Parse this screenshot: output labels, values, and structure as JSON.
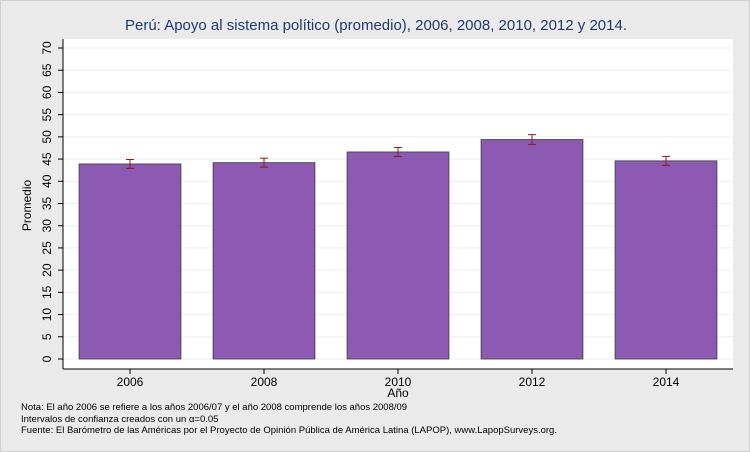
{
  "chart_data": {
    "type": "bar",
    "title": "Perú: Apoyo al sistema político (promedio), 2006, 2008, 2010, 2012 y 2014.",
    "xlabel": "Año",
    "ylabel": "Promedio",
    "categories": [
      "2006",
      "2008",
      "2010",
      "2012",
      "2014"
    ],
    "values": [
      43.9,
      44.2,
      46.6,
      49.4,
      44.6
    ],
    "ci_lower": [
      42.9,
      43.2,
      45.6,
      48.3,
      43.6
    ],
    "ci_upper": [
      44.9,
      45.2,
      47.6,
      50.5,
      45.6
    ],
    "ylim": [
      0,
      70
    ],
    "yticks": [
      0,
      5,
      10,
      15,
      20,
      25,
      30,
      35,
      40,
      45,
      50,
      55,
      60,
      65,
      70
    ],
    "grid": true,
    "bar_color": "#8c59b3",
    "errorbar_color": "#8b1a1a"
  },
  "notes": {
    "line1": "Nota: El año 2006 se refiere a los años 2006/07 y el año 2008 comprende los años 2008/09",
    "line2": "Intervalos de confianza creados con un α=0.05",
    "line3": "Fuente: El Barómetro de las Américas por el Proyecto de Opinión Pública de América Latina (LAPOP), www.LapopSurveys.org."
  }
}
